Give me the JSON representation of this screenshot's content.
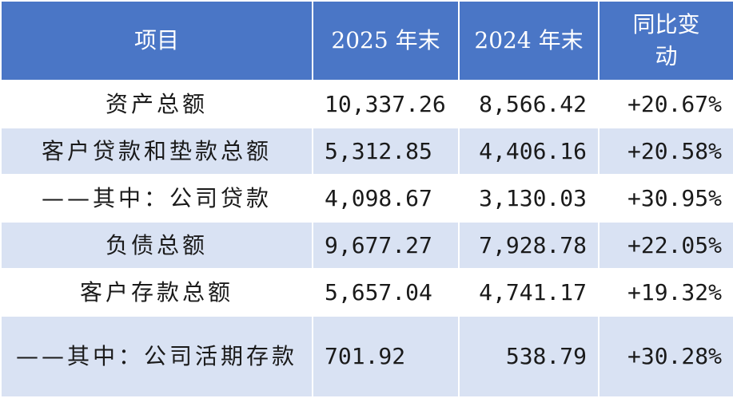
{
  "table": {
    "header": [
      "项目",
      "2025 年末",
      "2024 年末",
      "同比变动"
    ],
    "rows": [
      [
        "资产总额",
        "10,337.26",
        "8,566.42",
        "+20.67%"
      ],
      [
        "客户贷款和垫款总额",
        "5,312.85",
        "4,406.16",
        "+20.58%"
      ],
      [
        "——其中：公司贷款",
        "4,098.67",
        "3,130.03",
        "+30.95%"
      ],
      [
        "负债总额",
        "9,677.27",
        "7,928.78",
        "+22.05%"
      ],
      [
        "客户存款总额",
        "5,657.04",
        "4,741.17",
        "+19.32%"
      ],
      [
        "——其中：公司活期存款",
        "701.92",
        "538.79",
        "+30.28%"
      ]
    ]
  }
}
